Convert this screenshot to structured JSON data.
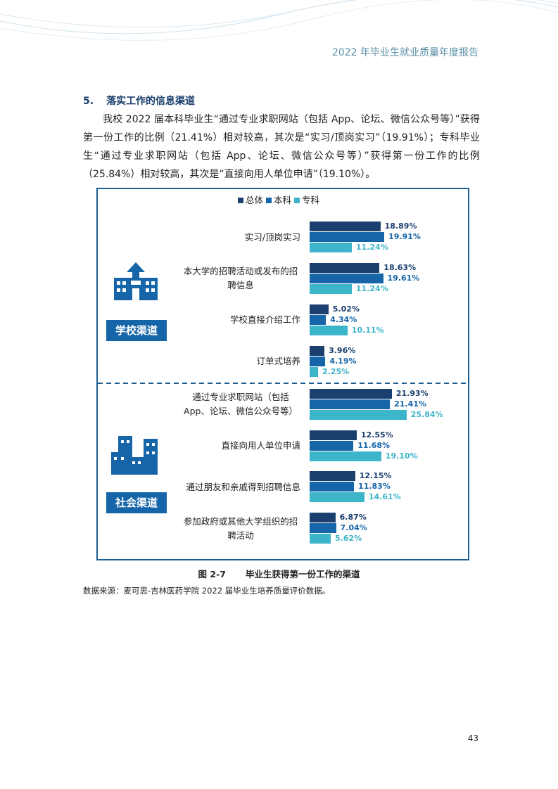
{
  "header": "2022 年毕业生就业质量年度报告",
  "section": {
    "number": "5.",
    "title": "落实工作的信息渠道"
  },
  "paragraph": "我校 2022 届本科毕业生“通过专业求职网站（包括 App、论坛、微信公众号等）”获得第一份工作的比例（21.41%）相对较高，其次是“实习/顶岗实习”（19.91%）；专科毕业生“通过专业求职网站（包括 App、论坛、微信公众号等）”获得第一份工作的比例（25.84%）相对较高，其次是“直接向用人单位申请”（19.10%）。",
  "chart_data": {
    "type": "bar",
    "orientation": "horizontal",
    "groups": [
      "学校渠道",
      "社会渠道"
    ],
    "categories": [
      "实习/顶岗实习",
      "本大学的招聘活动或发布的招聘信息",
      "学校直接介绍工作",
      "订单式培养",
      "通过专业求职网站（包括App、论坛、微信公众号等）",
      "直接向用人单位申请",
      "通过朋友和亲戚得到招聘信息",
      "参加政府或其他大学组织的招聘活动"
    ],
    "series": [
      {
        "name": "总体",
        "color": "#1b3f6f",
        "values": [
          18.89,
          18.63,
          5.02,
          3.96,
          21.93,
          12.55,
          12.15,
          6.87
        ],
        "value_labels": [
          "18.89%",
          "18.63%",
          "5.02%",
          "3.96%",
          "21.93%",
          "12.55%",
          "12.15%",
          "6.87%"
        ]
      },
      {
        "name": "本科",
        "color": "#1565a8",
        "values": [
          19.91,
          19.61,
          4.34,
          4.19,
          21.41,
          11.68,
          11.83,
          7.04
        ],
        "value_labels": [
          "19.91%",
          "19.61%",
          "4.34%",
          "4.19%",
          "21.41%",
          "11.68%",
          "11.83%",
          "7.04%"
        ]
      },
      {
        "name": "专科",
        "color": "#3cb4c9",
        "values": [
          11.24,
          11.24,
          10.11,
          2.25,
          25.84,
          19.1,
          14.61,
          5.62
        ],
        "value_labels": [
          "11.24%",
          "11.24%",
          "10.11%",
          "2.25%",
          "25.84%",
          "19.10%",
          "14.61%",
          "5.62%"
        ]
      }
    ]
  },
  "caption": {
    "number": "图 2-7",
    "title": "毕业生获得第一份工作的渠道"
  },
  "source": "数据来源：麦可思-吉林医药学院 2022 届毕业生培养质量评价数据。",
  "page_number": "43"
}
